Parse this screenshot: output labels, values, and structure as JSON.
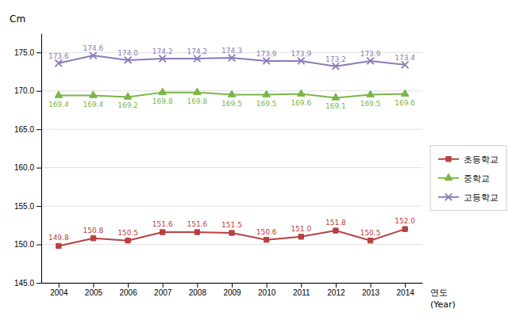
{
  "chart_data": {
    "type": "line",
    "x_label": [
      "연도",
      "(Year)"
    ],
    "y_label": "Cm",
    "x": [
      2004,
      2005,
      2006,
      2007,
      2008,
      2009,
      2010,
      2011,
      2012,
      2013,
      2014
    ],
    "xlim": [
      2003.5,
      2014.5
    ],
    "xticks": [
      2004,
      2005,
      2006,
      2007,
      2008,
      2009,
      2010,
      2011,
      2012,
      2013,
      2014
    ],
    "ylim": [
      145.0,
      177.5
    ],
    "yticks": [
      {
        "value": 145.0,
        "label": "145.0"
      },
      {
        "value": 150.0,
        "label": "150.0"
      },
      {
        "value": 155.0,
        "label": "155.0"
      },
      {
        "value": 160.0,
        "label": "160.0"
      },
      {
        "value": 165.0,
        "label": "165.0"
      },
      {
        "value": 170.0,
        "label": "170.0"
      },
      {
        "value": 175.0,
        "label": "175.0"
      }
    ],
    "grid": true,
    "legend": "right",
    "data_labels": true,
    "series": [
      {
        "name": "초등학교",
        "color": "#B94040",
        "marker": "square",
        "values": [
          149.8,
          150.8,
          150.5,
          151.6,
          151.6,
          151.5,
          150.6,
          151.0,
          151.8,
          150.5,
          152.0
        ],
        "value_labels": [
          "149.8",
          "150.8",
          "150.5",
          "151.6",
          "151.6",
          "151.5",
          "150.6",
          "151.0",
          "151.8",
          "150.5",
          "152.0"
        ]
      },
      {
        "name": "중학교",
        "color": "#7AB648",
        "marker": "triangle",
        "values": [
          169.4,
          169.4,
          169.2,
          169.8,
          169.8,
          169.5,
          169.5,
          169.6,
          169.1,
          169.5,
          169.6
        ],
        "value_labels": [
          "169.4",
          "169.4",
          "169.2",
          "169.8",
          "169.8",
          "169.5",
          "169.5",
          "169.6",
          "169.1",
          "169.5",
          "169.6"
        ]
      },
      {
        "name": "고등학교",
        "color": "#8B7BB5",
        "marker": "x",
        "values": [
          173.6,
          174.6,
          174.0,
          174.2,
          174.2,
          174.3,
          173.9,
          173.9,
          173.2,
          173.9,
          173.4
        ],
        "value_labels": [
          "173.6",
          "174.6",
          "174.0",
          "174.2",
          "174.2",
          "174.3",
          "173.9",
          "173.9",
          "173.2",
          "173.9",
          "173.4"
        ]
      }
    ]
  }
}
